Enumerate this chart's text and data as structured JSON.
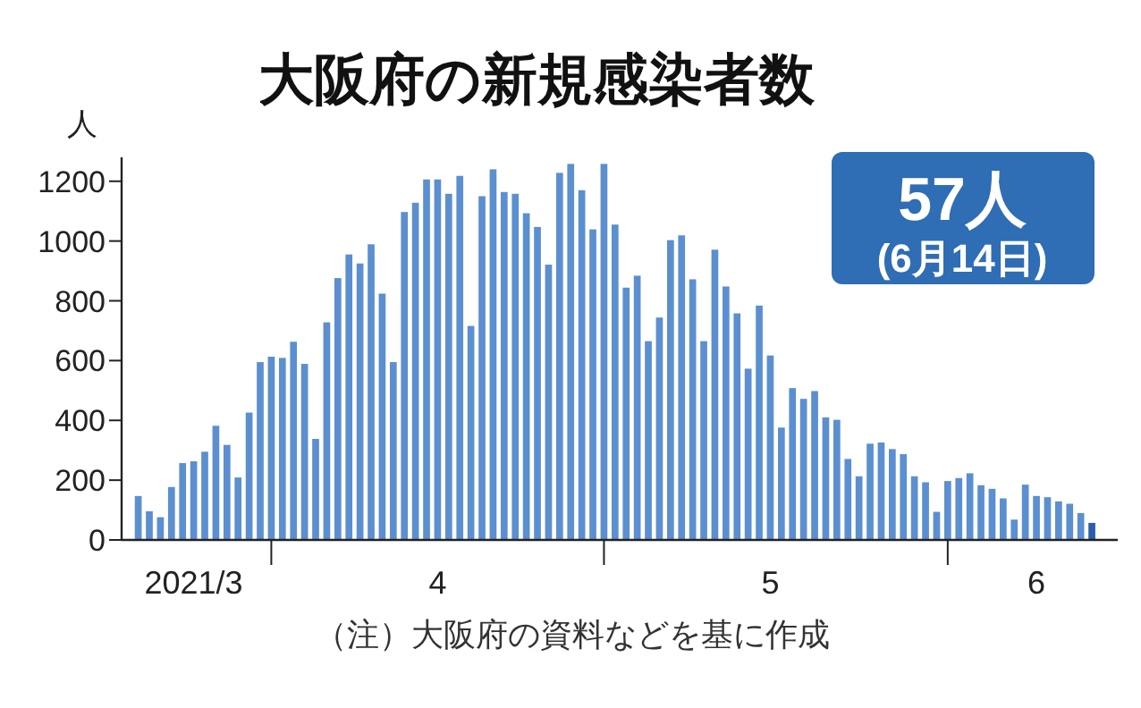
{
  "chart_data": {
    "type": "bar",
    "title": "大阪府の新規感染者数",
    "ylabel": "人",
    "x": [
      "2021-03-20",
      "2021-03-21",
      "2021-03-22",
      "2021-03-23",
      "2021-03-24",
      "2021-03-25",
      "2021-03-26",
      "2021-03-27",
      "2021-03-28",
      "2021-03-29",
      "2021-03-30",
      "2021-03-31",
      "2021-04-01",
      "2021-04-02",
      "2021-04-03",
      "2021-04-04",
      "2021-04-05",
      "2021-04-06",
      "2021-04-07",
      "2021-04-08",
      "2021-04-09",
      "2021-04-10",
      "2021-04-11",
      "2021-04-12",
      "2021-04-13",
      "2021-04-14",
      "2021-04-15",
      "2021-04-16",
      "2021-04-17",
      "2021-04-18",
      "2021-04-19",
      "2021-04-20",
      "2021-04-21",
      "2021-04-22",
      "2021-04-23",
      "2021-04-24",
      "2021-04-25",
      "2021-04-26",
      "2021-04-27",
      "2021-04-28",
      "2021-04-29",
      "2021-04-30",
      "2021-05-01",
      "2021-05-02",
      "2021-05-03",
      "2021-05-04",
      "2021-05-05",
      "2021-05-06",
      "2021-05-07",
      "2021-05-08",
      "2021-05-09",
      "2021-05-10",
      "2021-05-11",
      "2021-05-12",
      "2021-05-13",
      "2021-05-14",
      "2021-05-15",
      "2021-05-16",
      "2021-05-17",
      "2021-05-18",
      "2021-05-19",
      "2021-05-20",
      "2021-05-21",
      "2021-05-22",
      "2021-05-23",
      "2021-05-24",
      "2021-05-25",
      "2021-05-26",
      "2021-05-27",
      "2021-05-28",
      "2021-05-29",
      "2021-05-30",
      "2021-05-31",
      "2021-06-01",
      "2021-06-02",
      "2021-06-03",
      "2021-06-04",
      "2021-06-05",
      "2021-06-06",
      "2021-06-07",
      "2021-06-08",
      "2021-06-09",
      "2021-06-10",
      "2021-06-11",
      "2021-06-12",
      "2021-06-13",
      "2021-06-14"
    ],
    "values": [
      147,
      96,
      76,
      177,
      257,
      263,
      295,
      382,
      318,
      209,
      426,
      595,
      613,
      609,
      663,
      589,
      338,
      728,
      876,
      955,
      925,
      989,
      824,
      595,
      1097,
      1128,
      1206,
      1206,
      1158,
      1218,
      716,
      1150,
      1240,
      1164,
      1158,
      1093,
      1047,
      921,
      1228,
      1258,
      1170,
      1039,
      1258,
      1055,
      844,
      884,
      665,
      744,
      1003,
      1019,
      872,
      665,
      971,
      848,
      758,
      573,
      784,
      617,
      376,
      508,
      472,
      498,
      410,
      402,
      271,
      213,
      322,
      326,
      304,
      287,
      213,
      193,
      94,
      197,
      207,
      223,
      183,
      171,
      139,
      68,
      185,
      147,
      143,
      129,
      121,
      90,
      57
    ],
    "colors": [
      "#5b8fd0",
      "#5b8fd0",
      "#5b8fd0",
      "#5b8fd0",
      "#5b8fd0",
      "#5b8fd0",
      "#5b8fd0",
      "#5b8fd0",
      "#5b8fd0",
      "#5b8fd0",
      "#5b8fd0",
      "#5b8fd0",
      "#5b8fd0",
      "#5b8fd0",
      "#5b8fd0",
      "#5b8fd0",
      "#5b8fd0",
      "#5b8fd0",
      "#5b8fd0",
      "#5b8fd0",
      "#5b8fd0",
      "#5b8fd0",
      "#5b8fd0",
      "#5b8fd0",
      "#5b8fd0",
      "#5b8fd0",
      "#5b8fd0",
      "#5b8fd0",
      "#5b8fd0",
      "#5b8fd0",
      "#5b8fd0",
      "#5b8fd0",
      "#5b8fd0",
      "#5b8fd0",
      "#5b8fd0",
      "#5b8fd0",
      "#5b8fd0",
      "#5b8fd0",
      "#5b8fd0",
      "#5b8fd0",
      "#5b8fd0",
      "#5b8fd0",
      "#5b8fd0",
      "#5b8fd0",
      "#5b8fd0",
      "#5b8fd0",
      "#5b8fd0",
      "#5b8fd0",
      "#5b8fd0",
      "#5b8fd0",
      "#5b8fd0",
      "#5b8fd0",
      "#5b8fd0",
      "#5b8fd0",
      "#5b8fd0",
      "#5b8fd0",
      "#5b8fd0",
      "#5b8fd0",
      "#5b8fd0",
      "#5b8fd0",
      "#5b8fd0",
      "#5b8fd0",
      "#5b8fd0",
      "#5b8fd0",
      "#5b8fd0",
      "#5b8fd0",
      "#5b8fd0",
      "#5b8fd0",
      "#5b8fd0",
      "#5b8fd0",
      "#5b8fd0",
      "#5b8fd0",
      "#5b8fd0",
      "#5b8fd0",
      "#5b8fd0",
      "#5b8fd0",
      "#5b8fd0",
      "#5b8fd0",
      "#5b8fd0",
      "#5b8fd0",
      "#5b8fd0",
      "#5b8fd0",
      "#5b8fd0",
      "#5b8fd0",
      "#5b8fd0",
      "#5b8fd0",
      "#2a5ea8"
    ],
    "xlim": [
      "2021-03-18T12:00",
      "2021-06-16T08:00"
    ],
    "xticks": [
      {
        "value": "2021-04-01",
        "label": null
      },
      {
        "value": "2021-05-01",
        "label": null
      },
      {
        "value": "2021-06-01",
        "label": null
      },
      {
        "value": "2021-03-25",
        "label": "2021/3"
      },
      {
        "value": "2021-04-16",
        "label": "4"
      },
      {
        "value": "2021-05-16",
        "label": "5"
      },
      {
        "value": "2021-06-09",
        "label": "6"
      }
    ],
    "ylim": [
      0,
      1280
    ],
    "yticks": [
      0,
      200,
      400,
      600,
      800,
      1000,
      1200
    ],
    "grid": false,
    "annotations": [
      "57人",
      "(6月14日)",
      "（注）大阪府の資料などを基に作成"
    ]
  }
}
